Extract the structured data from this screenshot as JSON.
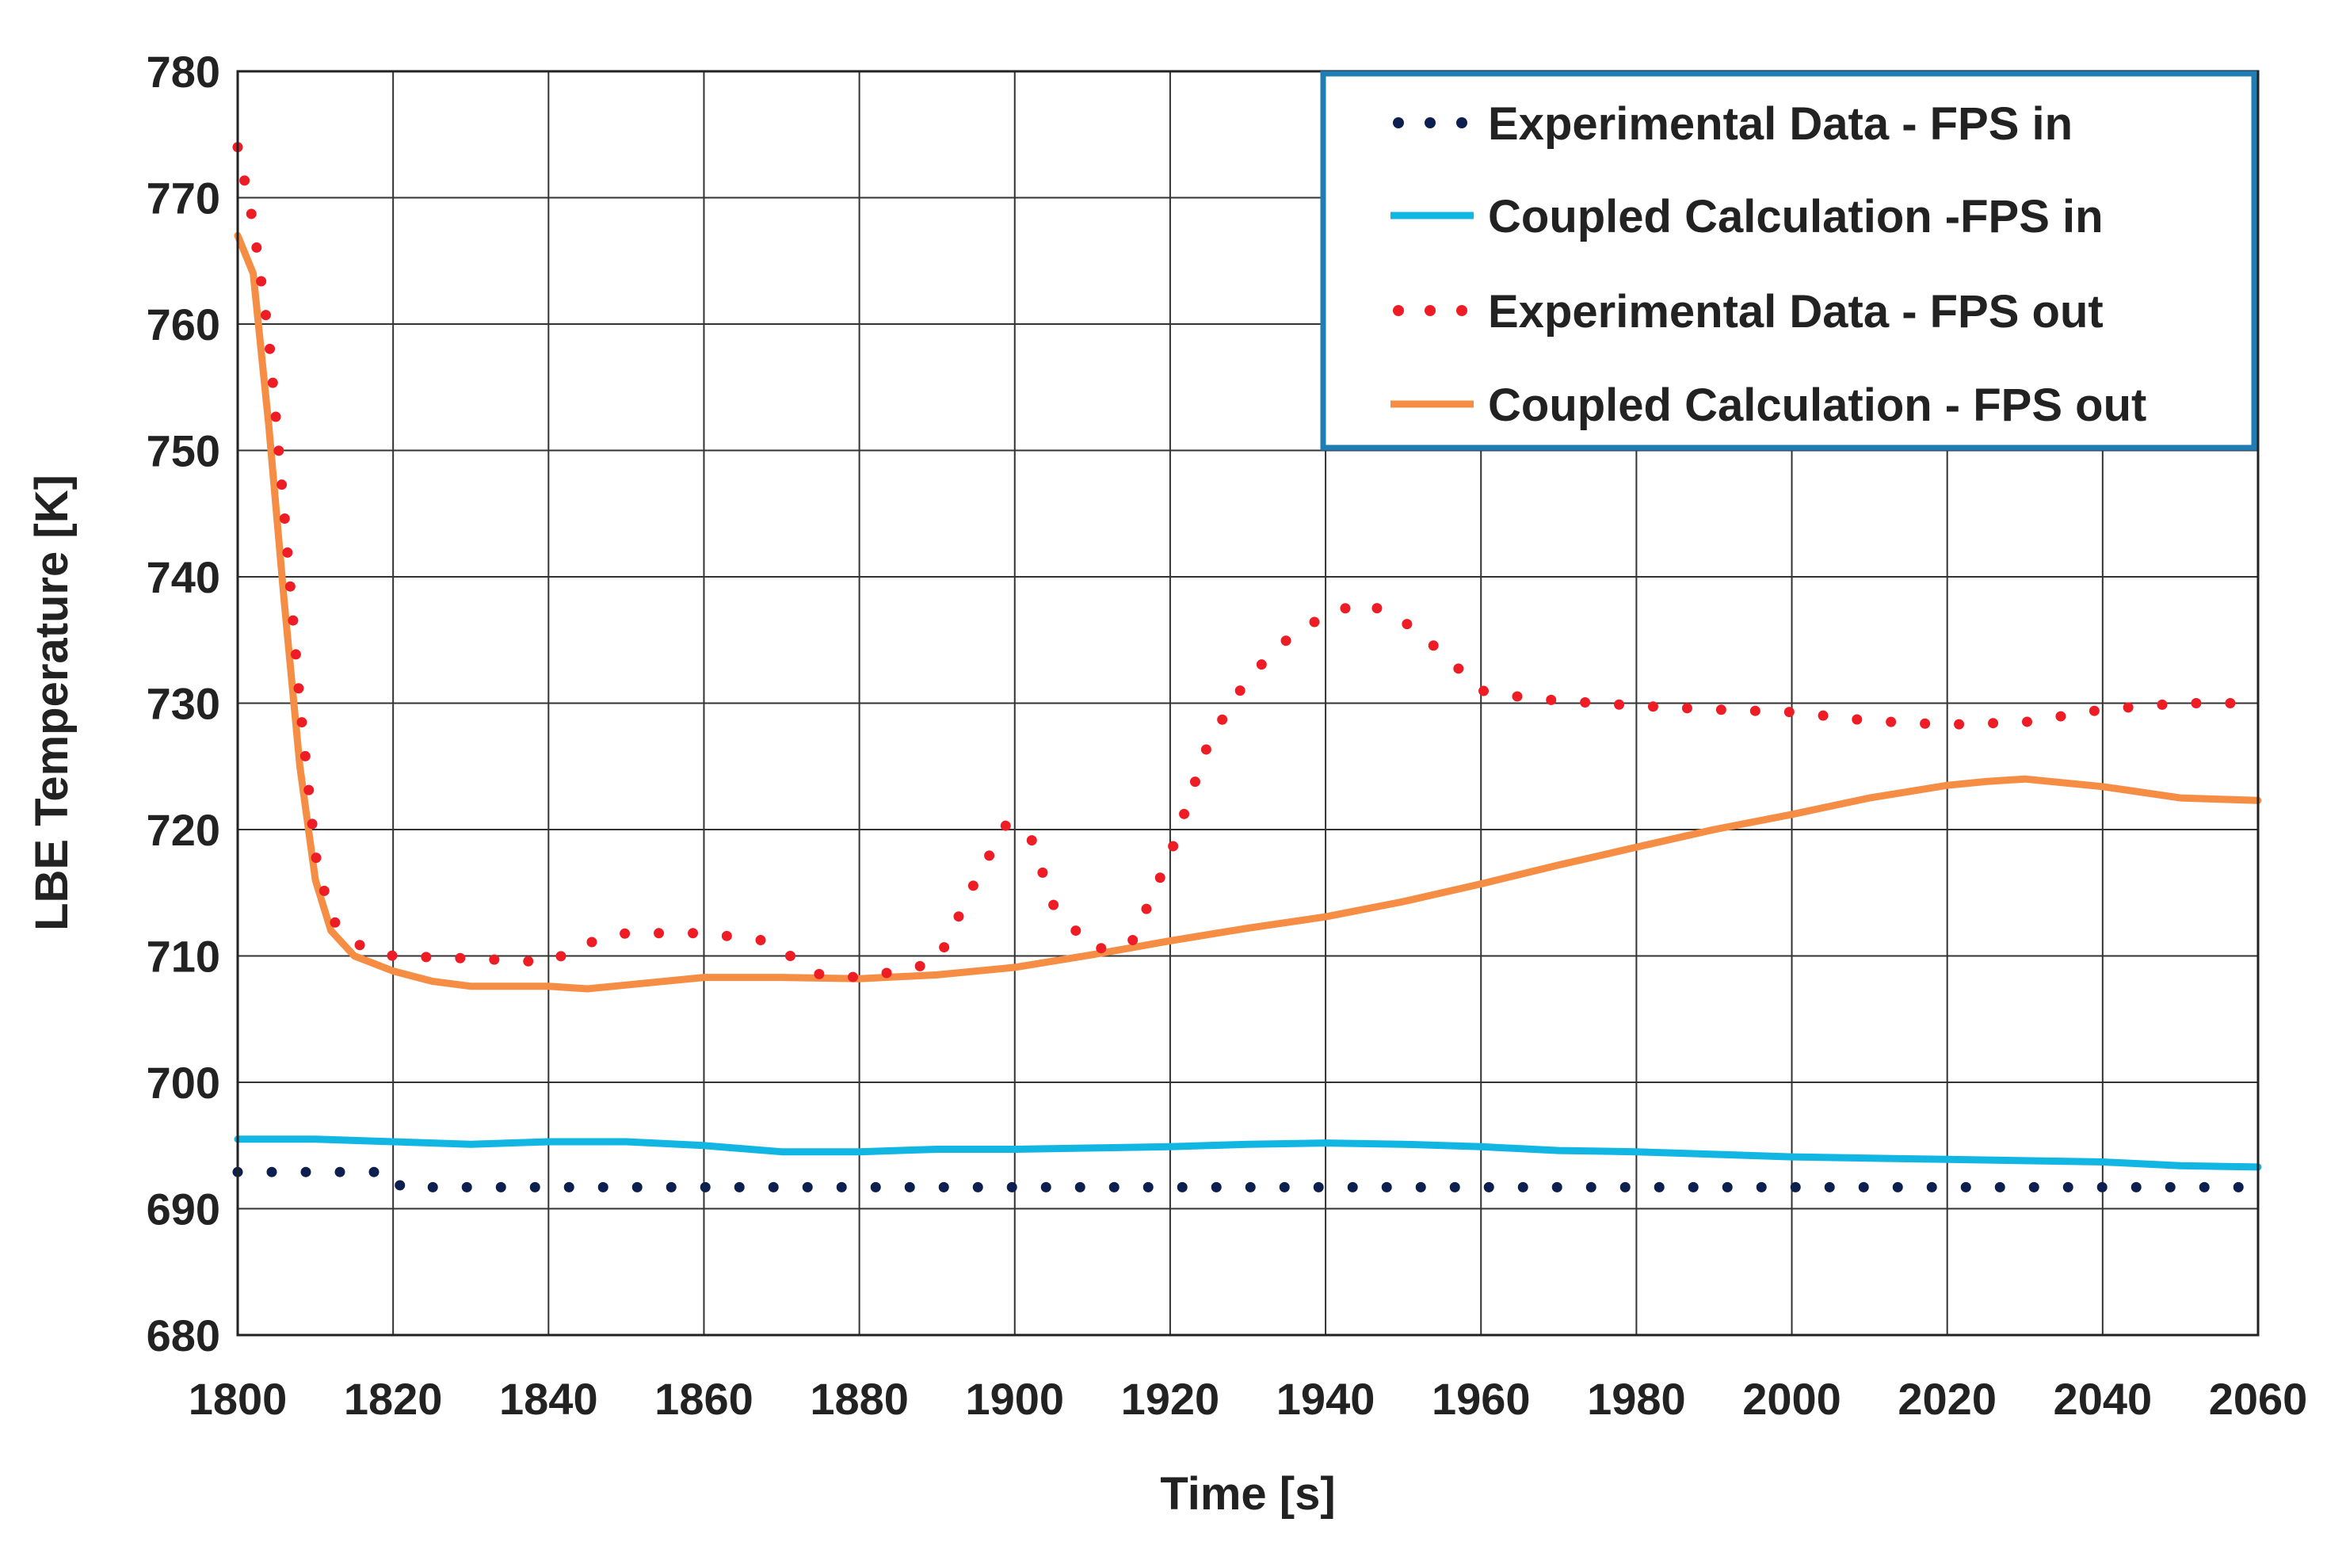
{
  "chart_data": {
    "type": "line",
    "title": "",
    "xlabel": "Time [s]",
    "ylabel": "LBE Temperature [K]",
    "xlim": [
      1800,
      2060
    ],
    "ylim": [
      680,
      780
    ],
    "xticks": [
      "1800",
      "1820",
      "1840",
      "1860",
      "1880",
      "1900",
      "1920",
      "1940",
      "1960",
      "1980",
      "2000",
      "2020",
      "2040",
      "2060"
    ],
    "yticks": [
      "680",
      "690",
      "700",
      "710",
      "720",
      "730",
      "740",
      "750",
      "760",
      "770",
      "780"
    ],
    "grid": true,
    "legend_position": "top-right",
    "colors": {
      "exp_in": "#0d1f4e",
      "calc_in": "#12b6e3",
      "exp_out": "#ee1c24",
      "calc_out": "#f58d45",
      "legend_border": "#1f7db4"
    },
    "series": [
      {
        "name": "Experimental Data - FPS in",
        "style": "dotted",
        "points": [
          [
            1800,
            692.9
          ],
          [
            1805,
            692.9
          ],
          [
            1810,
            692.9
          ],
          [
            1815,
            692.9
          ],
          [
            1820,
            692.9
          ],
          [
            1821,
            691.7
          ],
          [
            1830,
            691.7
          ],
          [
            1840,
            691.7
          ],
          [
            1850,
            691.7
          ],
          [
            1860,
            691.7
          ],
          [
            1870,
            691.7
          ],
          [
            1880,
            691.7
          ],
          [
            1890,
            691.7
          ],
          [
            1900,
            691.7
          ],
          [
            1910,
            691.7
          ],
          [
            1920,
            691.7
          ],
          [
            1930,
            691.7
          ],
          [
            1940,
            691.7
          ],
          [
            1950,
            691.7
          ],
          [
            1960,
            691.7
          ],
          [
            1970,
            691.7
          ],
          [
            1980,
            691.7
          ],
          [
            1990,
            691.7
          ],
          [
            2000,
            691.7
          ],
          [
            2010,
            691.7
          ],
          [
            2020,
            691.7
          ],
          [
            2030,
            691.7
          ],
          [
            2040,
            691.7
          ],
          [
            2050,
            691.7
          ],
          [
            2060,
            691.7
          ]
        ]
      },
      {
        "name": "Coupled Calculation -FPS in",
        "style": "solid",
        "points": [
          [
            1800,
            695.5
          ],
          [
            1810,
            695.5
          ],
          [
            1820,
            695.3
          ],
          [
            1830,
            695.1
          ],
          [
            1840,
            695.3
          ],
          [
            1850,
            695.3
          ],
          [
            1860,
            695.0
          ],
          [
            1870,
            694.5
          ],
          [
            1880,
            694.5
          ],
          [
            1890,
            694.7
          ],
          [
            1900,
            694.7
          ],
          [
            1910,
            694.8
          ],
          [
            1920,
            694.9
          ],
          [
            1930,
            695.1
          ],
          [
            1940,
            695.2
          ],
          [
            1950,
            695.1
          ],
          [
            1960,
            694.9
          ],
          [
            1970,
            694.6
          ],
          [
            1980,
            694.5
          ],
          [
            1990,
            694.3
          ],
          [
            2000,
            694.1
          ],
          [
            2010,
            694.0
          ],
          [
            2020,
            693.9
          ],
          [
            2030,
            693.8
          ],
          [
            2040,
            693.7
          ],
          [
            2050,
            693.4
          ],
          [
            2060,
            693.3
          ]
        ]
      },
      {
        "name": "Experimental Data - FPS out",
        "style": "dotted",
        "points": [
          [
            1800,
            774
          ],
          [
            1802,
            768
          ],
          [
            1804,
            759
          ],
          [
            1806,
            745
          ],
          [
            1808,
            730
          ],
          [
            1810,
            718
          ],
          [
            1812,
            713
          ],
          [
            1815,
            711
          ],
          [
            1820,
            710
          ],
          [
            1830,
            709.8
          ],
          [
            1840,
            709.5
          ],
          [
            1845,
            711
          ],
          [
            1850,
            711.8
          ],
          [
            1860,
            711.8
          ],
          [
            1868,
            711.2
          ],
          [
            1875,
            708.5
          ],
          [
            1880,
            708.3
          ],
          [
            1885,
            708.8
          ],
          [
            1890,
            709.5
          ],
          [
            1895,
            716
          ],
          [
            1899,
            720.5
          ],
          [
            1902,
            719.5
          ],
          [
            1905,
            714
          ],
          [
            1910,
            710.5
          ],
          [
            1915,
            711
          ],
          [
            1920,
            718
          ],
          [
            1925,
            727
          ],
          [
            1930,
            732
          ],
          [
            1935,
            735
          ],
          [
            1940,
            737
          ],
          [
            1945,
            738
          ],
          [
            1950,
            736.5
          ],
          [
            1955,
            734
          ],
          [
            1960,
            731
          ],
          [
            1965,
            730.5
          ],
          [
            1970,
            730.2
          ],
          [
            1980,
            729.8
          ],
          [
            1990,
            729.5
          ],
          [
            2000,
            729.3
          ],
          [
            2010,
            728.6
          ],
          [
            2020,
            728.3
          ],
          [
            2030,
            728.5
          ],
          [
            2040,
            729.5
          ],
          [
            2050,
            730
          ],
          [
            2060,
            730
          ]
        ]
      },
      {
        "name": "Coupled Calculation - FPS out",
        "style": "solid",
        "points": [
          [
            1800,
            767
          ],
          [
            1802,
            764
          ],
          [
            1804,
            752
          ],
          [
            1806,
            738
          ],
          [
            1808,
            725
          ],
          [
            1810,
            716
          ],
          [
            1812,
            712
          ],
          [
            1815,
            710
          ],
          [
            1820,
            708.8
          ],
          [
            1825,
            708
          ],
          [
            1830,
            707.6
          ],
          [
            1840,
            707.6
          ],
          [
            1845,
            707.4
          ],
          [
            1850,
            707.7
          ],
          [
            1860,
            708.3
          ],
          [
            1870,
            708.3
          ],
          [
            1880,
            708.2
          ],
          [
            1890,
            708.5
          ],
          [
            1900,
            709.1
          ],
          [
            1910,
            710.1
          ],
          [
            1920,
            711.2
          ],
          [
            1930,
            712.2
          ],
          [
            1940,
            713.1
          ],
          [
            1950,
            714.3
          ],
          [
            1960,
            715.7
          ],
          [
            1970,
            717.2
          ],
          [
            1980,
            718.6
          ],
          [
            1990,
            720.0
          ],
          [
            2000,
            721.2
          ],
          [
            2010,
            722.5
          ],
          [
            2020,
            723.5
          ],
          [
            2025,
            723.8
          ],
          [
            2030,
            724.0
          ],
          [
            2040,
            723.4
          ],
          [
            2050,
            722.5
          ],
          [
            2060,
            722.3
          ]
        ]
      }
    ]
  }
}
